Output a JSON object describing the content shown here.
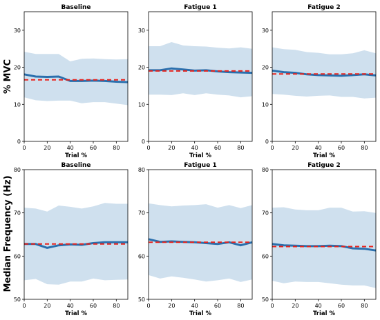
{
  "figure": {
    "ylabels": [
      "% MVC",
      "Median Frequency (Hz)"
    ]
  },
  "chart_data": [
    {
      "type": "line",
      "row": 0,
      "col": 0,
      "title": "Baseline",
      "xlabel": "Trial %",
      "xlim": [
        0,
        90
      ],
      "ylim": [
        0,
        35
      ],
      "xticks": [
        0,
        20,
        40,
        60,
        80
      ],
      "yticks": [
        0,
        10,
        20,
        30
      ],
      "x": [
        0,
        10,
        20,
        30,
        40,
        50,
        60,
        70,
        80,
        90
      ],
      "series": [
        {
          "values": [
            18.1,
            17.5,
            17.4,
            17.5,
            16.3,
            16.3,
            16.4,
            16.3,
            16.1,
            16.0
          ],
          "color": "#2a6fad",
          "style": "solid"
        },
        {
          "values": [
            16.6,
            16.6,
            16.6,
            16.6,
            16.6,
            16.6,
            16.6,
            16.6,
            16.6,
            16.6
          ],
          "color": "#e8231c",
          "style": "dashed"
        }
      ],
      "band": {
        "upper": [
          24.2,
          23.6,
          23.6,
          23.6,
          21.6,
          22.3,
          22.4,
          22.2,
          22.1,
          22.2
        ],
        "lower": [
          11.9,
          11.1,
          10.9,
          11.0,
          11.0,
          10.3,
          10.6,
          10.6,
          10.2,
          9.8
        ],
        "color": "#cfe0ee"
      }
    },
    {
      "type": "line",
      "row": 0,
      "col": 1,
      "title": "Fatigue 1",
      "xlabel": "Trial %",
      "xlim": [
        0,
        90
      ],
      "ylim": [
        0,
        35
      ],
      "xticks": [
        0,
        20,
        40,
        60,
        80
      ],
      "yticks": [
        0,
        10,
        20,
        30
      ],
      "x": [
        0,
        10,
        20,
        30,
        40,
        50,
        60,
        70,
        80,
        90
      ],
      "series": [
        {
          "values": [
            19.2,
            19.2,
            19.7,
            19.4,
            19.1,
            19.2,
            18.9,
            18.7,
            18.6,
            18.5
          ],
          "color": "#2a6fad",
          "style": "solid"
        },
        {
          "values": [
            19.0,
            19.0,
            19.0,
            19.0,
            19.0,
            19.0,
            19.0,
            19.0,
            19.0,
            19.0
          ],
          "color": "#e8231c",
          "style": "dashed"
        }
      ],
      "band": {
        "upper": [
          25.7,
          25.7,
          26.8,
          25.9,
          25.7,
          25.6,
          25.3,
          25.1,
          25.4,
          25.0
        ],
        "lower": [
          12.6,
          12.6,
          12.5,
          13.0,
          12.5,
          13.0,
          12.6,
          12.4,
          11.9,
          12.2
        ],
        "color": "#cfe0ee"
      }
    },
    {
      "type": "line",
      "row": 0,
      "col": 2,
      "title": "Fatigue 2",
      "xlabel": "Trial %",
      "xlim": [
        0,
        90
      ],
      "ylim": [
        0,
        35
      ],
      "xticks": [
        0,
        20,
        40,
        60,
        80
      ],
      "yticks": [
        0,
        10,
        20,
        30
      ],
      "x": [
        0,
        10,
        20,
        30,
        40,
        50,
        60,
        70,
        80,
        90
      ],
      "series": [
        {
          "values": [
            19.1,
            18.7,
            18.5,
            18.1,
            17.9,
            17.8,
            17.7,
            17.9,
            18.1,
            17.8
          ],
          "color": "#2a6fad",
          "style": "solid"
        },
        {
          "values": [
            18.2,
            18.2,
            18.2,
            18.2,
            18.2,
            18.2,
            18.2,
            18.2,
            18.2,
            18.2
          ],
          "color": "#e8231c",
          "style": "dashed"
        }
      ],
      "band": {
        "upper": [
          25.4,
          24.9,
          24.7,
          24.1,
          23.9,
          23.5,
          23.5,
          23.8,
          24.6,
          23.8
        ],
        "lower": [
          12.8,
          12.6,
          12.3,
          12.1,
          12.3,
          12.4,
          12.0,
          12.0,
          11.6,
          11.8
        ],
        "color": "#cfe0ee"
      }
    },
    {
      "type": "line",
      "row": 1,
      "col": 0,
      "title": "Baseline",
      "xlabel": "Trial %",
      "xlim": [
        0,
        90
      ],
      "ylim": [
        50,
        80
      ],
      "xticks": [
        0,
        20,
        40,
        60,
        80
      ],
      "yticks": [
        50,
        60,
        70,
        80
      ],
      "x": [
        0,
        10,
        20,
        30,
        40,
        50,
        60,
        70,
        80,
        90
      ],
      "series": [
        {
          "values": [
            62.8,
            62.8,
            61.9,
            62.5,
            62.7,
            62.6,
            63.0,
            63.2,
            63.2,
            63.2
          ],
          "color": "#2a6fad",
          "style": "solid"
        },
        {
          "values": [
            62.8,
            62.8,
            62.8,
            62.8,
            62.8,
            62.8,
            62.8,
            62.8,
            62.8,
            62.8
          ],
          "color": "#e8231c",
          "style": "dashed"
        }
      ],
      "band": {
        "upper": [
          71.2,
          71.0,
          70.3,
          71.7,
          71.4,
          71.0,
          71.5,
          72.3,
          72.1,
          72.1
        ],
        "lower": [
          54.4,
          54.7,
          53.5,
          53.4,
          54.1,
          54.1,
          54.8,
          54.4,
          54.5,
          54.6
        ],
        "color": "#cfe0ee"
      }
    },
    {
      "type": "line",
      "row": 1,
      "col": 1,
      "title": "Fatigue 1",
      "xlabel": "Trial %",
      "xlim": [
        0,
        90
      ],
      "ylim": [
        50,
        80
      ],
      "xticks": [
        0,
        20,
        40,
        60,
        80
      ],
      "yticks": [
        50,
        60,
        70,
        80
      ],
      "x": [
        0,
        10,
        20,
        30,
        40,
        50,
        60,
        70,
        80,
        90
      ],
      "series": [
        {
          "values": [
            63.9,
            63.3,
            63.4,
            63.3,
            63.2,
            63.0,
            62.8,
            63.2,
            62.5,
            63.2
          ],
          "color": "#2a6fad",
          "style": "solid"
        },
        {
          "values": [
            63.2,
            63.2,
            63.2,
            63.2,
            63.2,
            63.2,
            63.2,
            63.2,
            63.2,
            63.2
          ],
          "color": "#e8231c",
          "style": "dashed"
        }
      ],
      "band": {
        "upper": [
          72.2,
          71.8,
          71.5,
          71.7,
          71.8,
          72.0,
          71.2,
          71.8,
          71.1,
          71.8
        ],
        "lower": [
          55.6,
          54.8,
          55.3,
          55.0,
          54.6,
          54.1,
          54.4,
          54.8,
          54.0,
          54.6
        ],
        "color": "#cfe0ee"
      }
    },
    {
      "type": "line",
      "row": 1,
      "col": 2,
      "title": "Fatigue 2",
      "xlabel": "Trial %",
      "xlim": [
        0,
        90
      ],
      "ylim": [
        50,
        80
      ],
      "xticks": [
        0,
        20,
        40,
        60,
        80
      ],
      "yticks": [
        50,
        60,
        70,
        80
      ],
      "x": [
        0,
        10,
        20,
        30,
        40,
        50,
        60,
        70,
        80,
        90
      ],
      "series": [
        {
          "values": [
            62.8,
            62.5,
            62.4,
            62.3,
            62.3,
            62.4,
            62.3,
            61.8,
            61.7,
            61.3
          ],
          "color": "#2a6fad",
          "style": "solid"
        },
        {
          "values": [
            62.2,
            62.2,
            62.2,
            62.2,
            62.2,
            62.2,
            62.2,
            62.2,
            62.2,
            62.2
          ],
          "color": "#e8231c",
          "style": "dashed"
        }
      ],
      "band": {
        "upper": [
          71.2,
          71.3,
          70.8,
          70.6,
          70.6,
          71.2,
          71.2,
          70.3,
          70.4,
          70.0
        ],
        "lower": [
          54.3,
          53.7,
          54.1,
          54.0,
          54.0,
          53.7,
          53.4,
          53.2,
          53.2,
          52.6
        ],
        "color": "#cfe0ee"
      }
    }
  ]
}
